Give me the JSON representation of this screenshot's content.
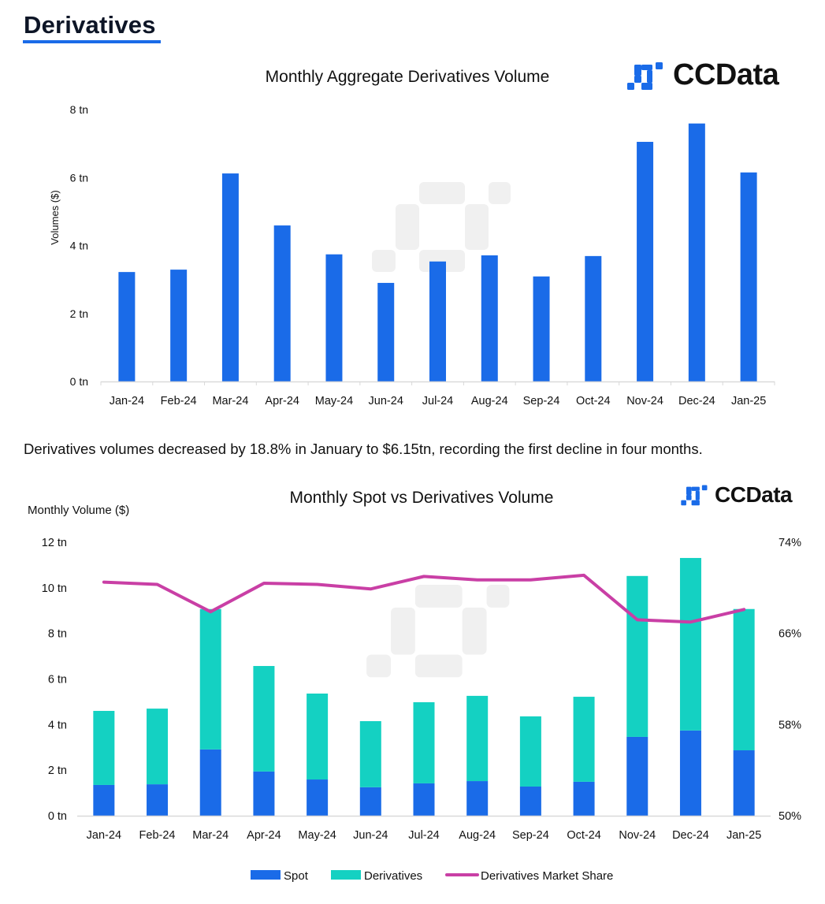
{
  "section": {
    "title": "Derivatives"
  },
  "logo": {
    "text": "CCData",
    "icon": "ccdata-logo-icon",
    "color": "#1a6be8"
  },
  "summary_text": "Derivatives volumes decreased by 18.8% in January to $6.15tn, recording the first decline in four months.",
  "colors": {
    "spot": "#1a6be8",
    "derivatives": "#14d1c2",
    "share": "#c93fa5",
    "axis": "#d9d9d9",
    "watermark": "#f0f0f0"
  },
  "chart_data": [
    {
      "type": "bar",
      "title": "Monthly Aggregate Derivatives Volume",
      "xlabel": "",
      "ylabel": "Volumes ($)",
      "ylim": [
        0,
        8
      ],
      "yticks": [
        0,
        2,
        4,
        6,
        8
      ],
      "ytick_labels": [
        "0 tn",
        "2 tn",
        "4 tn",
        "6 tn",
        "8 tn"
      ],
      "grid": false,
      "categories": [
        "Jan-24",
        "Feb-24",
        "Mar-24",
        "Apr-24",
        "May-24",
        "Jun-24",
        "Jul-24",
        "Aug-24",
        "Sep-24",
        "Oct-24",
        "Nov-24",
        "Dec-24",
        "Jan-25"
      ],
      "values": [
        3.22,
        3.29,
        6.12,
        4.59,
        3.74,
        2.9,
        3.53,
        3.71,
        3.09,
        3.69,
        7.05,
        7.59,
        6.15
      ],
      "unit": "tn"
    },
    {
      "type": "bar",
      "stacked": true,
      "title": "Monthly Spot vs Derivatives Volume",
      "ylabel": "Monthly Volume ($)",
      "ylim": [
        0,
        12
      ],
      "yticks": [
        0,
        2,
        4,
        6,
        8,
        10,
        12
      ],
      "ytick_labels": [
        "0 tn",
        "2 tn",
        "4 tn",
        "6 tn",
        "8 tn",
        "10 tn",
        "12 tn"
      ],
      "y2lim": [
        50,
        74
      ],
      "y2ticks": [
        50,
        58,
        66,
        74
      ],
      "y2tick_labels": [
        "50%",
        "58%",
        "66%",
        "74%"
      ],
      "grid": false,
      "legend_position": "bottom",
      "categories": [
        "Jan-24",
        "Feb-24",
        "Mar-24",
        "Apr-24",
        "May-24",
        "Jun-24",
        "Jul-24",
        "Aug-24",
        "Sep-24",
        "Oct-24",
        "Nov-24",
        "Dec-24",
        "Jan-25"
      ],
      "series": [
        {
          "name": "Spot",
          "kind": "bar",
          "axis": "left",
          "values": [
            1.35,
            1.38,
            2.91,
            1.94,
            1.59,
            1.25,
            1.42,
            1.52,
            1.28,
            1.49,
            3.46,
            3.74,
            2.87
          ]
        },
        {
          "name": "Derivatives",
          "kind": "bar",
          "axis": "left",
          "values": [
            3.25,
            3.32,
            6.16,
            4.63,
            3.77,
            2.9,
            3.56,
            3.74,
            3.08,
            3.73,
            7.06,
            7.57,
            6.2
          ]
        },
        {
          "name": "Derivatives Market Share",
          "kind": "line",
          "axis": "right",
          "values": [
            70.5,
            70.3,
            67.9,
            70.4,
            70.3,
            69.9,
            71.0,
            70.7,
            70.7,
            71.1,
            67.2,
            67.0,
            68.1
          ]
        }
      ]
    }
  ]
}
